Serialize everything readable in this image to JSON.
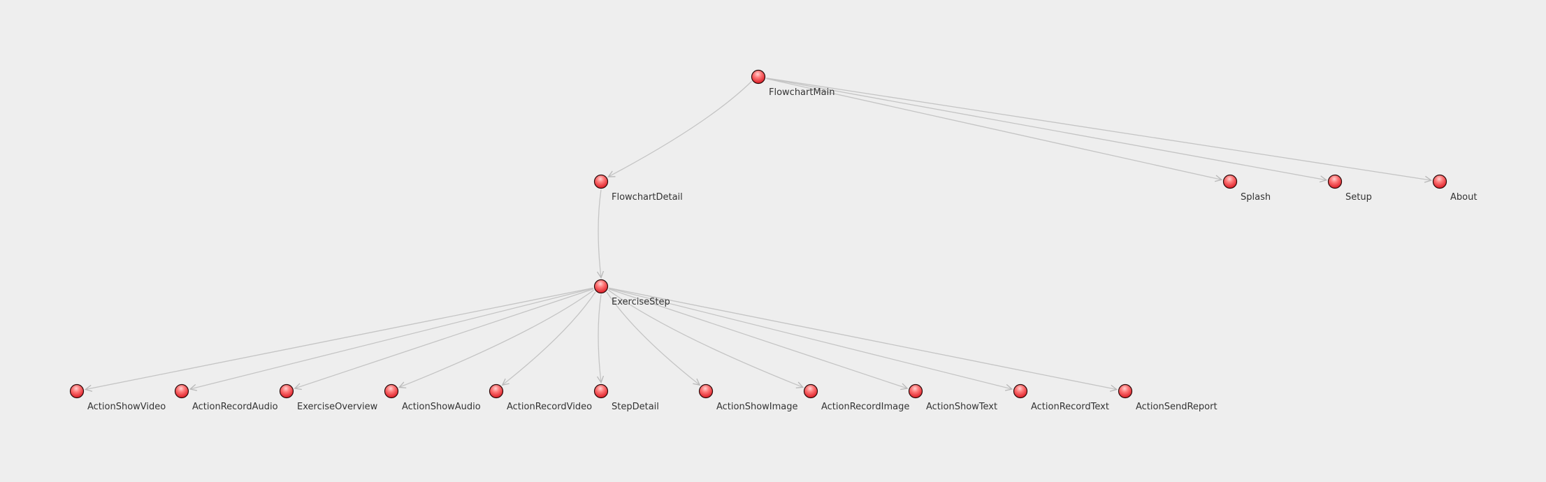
{
  "diagram": {
    "colors": {
      "background": "#eeeeee",
      "node_fill_top": "#ff9a9a",
      "node_fill_bottom": "#e0141e",
      "node_stroke": "#2a0a0a",
      "edge": "#c4c4c4",
      "label": "#333333"
    },
    "nodes": [
      {
        "id": "FlowchartMain",
        "label": "FlowchartMain"
      },
      {
        "id": "FlowchartDetail",
        "label": "FlowchartDetail"
      },
      {
        "id": "Splash",
        "label": "Splash"
      },
      {
        "id": "Setup",
        "label": "Setup"
      },
      {
        "id": "About",
        "label": "About"
      },
      {
        "id": "ExerciseStep",
        "label": "ExerciseStep"
      },
      {
        "id": "ActionShowVideo",
        "label": "ActionShowVideo"
      },
      {
        "id": "ActionRecordAudio",
        "label": "ActionRecordAudio"
      },
      {
        "id": "ExerciseOverview",
        "label": "ExerciseOverview"
      },
      {
        "id": "ActionShowAudio",
        "label": "ActionShowAudio"
      },
      {
        "id": "ActionRecordVideo",
        "label": "ActionRecordVideo"
      },
      {
        "id": "StepDetail",
        "label": "StepDetail"
      },
      {
        "id": "ActionShowImage",
        "label": "ActionShowImage"
      },
      {
        "id": "ActionRecordImage",
        "label": "ActionRecordImage"
      },
      {
        "id": "ActionShowText",
        "label": "ActionShowText"
      },
      {
        "id": "ActionRecordText",
        "label": "ActionRecordText"
      },
      {
        "id": "ActionSendReport",
        "label": "ActionSendReport"
      }
    ],
    "edges": [
      {
        "from": "FlowchartMain",
        "to": "FlowchartDetail"
      },
      {
        "from": "FlowchartMain",
        "to": "Splash"
      },
      {
        "from": "FlowchartMain",
        "to": "Setup"
      },
      {
        "from": "FlowchartMain",
        "to": "About"
      },
      {
        "from": "FlowchartDetail",
        "to": "ExerciseStep"
      },
      {
        "from": "ExerciseStep",
        "to": "ActionShowVideo"
      },
      {
        "from": "ExerciseStep",
        "to": "ActionRecordAudio"
      },
      {
        "from": "ExerciseStep",
        "to": "ExerciseOverview"
      },
      {
        "from": "ExerciseStep",
        "to": "ActionShowAudio"
      },
      {
        "from": "ExerciseStep",
        "to": "ActionRecordVideo"
      },
      {
        "from": "ExerciseStep",
        "to": "StepDetail"
      },
      {
        "from": "ExerciseStep",
        "to": "ActionShowImage"
      },
      {
        "from": "ExerciseStep",
        "to": "ActionRecordImage"
      },
      {
        "from": "ExerciseStep",
        "to": "ActionShowText"
      },
      {
        "from": "ExerciseStep",
        "to": "ActionRecordText"
      },
      {
        "from": "ExerciseStep",
        "to": "ActionSendReport"
      }
    ]
  }
}
